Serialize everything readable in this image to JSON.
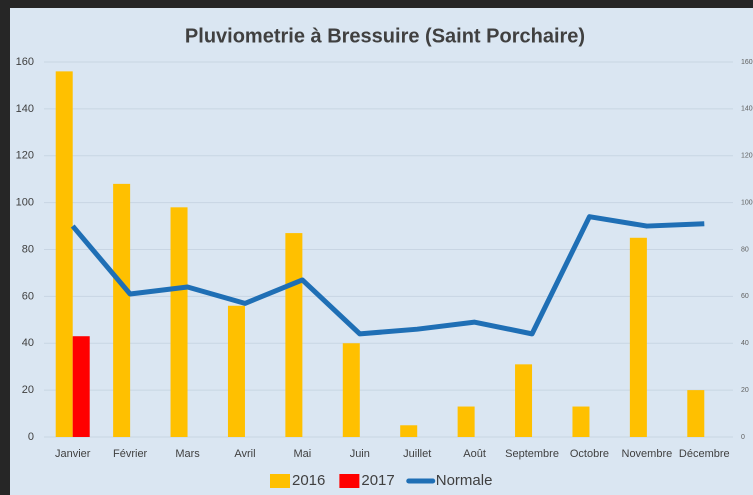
{
  "chart_data": {
    "type": "bar",
    "title": "Pluviometrie à Bressuire (Saint Porchaire)",
    "categories": [
      "Janvier",
      "Février",
      "Mars",
      "Avril",
      "Mai",
      "Juin",
      "Juillet",
      "Août",
      "Septembre",
      "Octobre",
      "Novembre",
      "Décembre"
    ],
    "series": [
      {
        "name": "2016",
        "type": "bar",
        "color": "#ffc000",
        "values": [
          156,
          108,
          98,
          56,
          87,
          40,
          5,
          13,
          31,
          13,
          85,
          20
        ]
      },
      {
        "name": "2017",
        "type": "bar",
        "color": "#ff0000",
        "values": [
          43,
          null,
          null,
          null,
          null,
          null,
          null,
          null,
          null,
          null,
          null,
          null
        ]
      },
      {
        "name": "Normale",
        "type": "line",
        "axis": "y2",
        "color": "#1f6fb5",
        "values": [
          90,
          61,
          64,
          57,
          67,
          44,
          46,
          49,
          44,
          94,
          90,
          91
        ]
      }
    ],
    "ylim": [
      0,
      160
    ],
    "yticks": [
      0,
      20,
      40,
      60,
      80,
      100,
      120,
      140,
      160
    ],
    "y2lim": [
      0,
      160
    ],
    "y2ticks": [
      0,
      20,
      40,
      60,
      80,
      100,
      120,
      140,
      160
    ],
    "grid": true,
    "legend": "bottom"
  }
}
